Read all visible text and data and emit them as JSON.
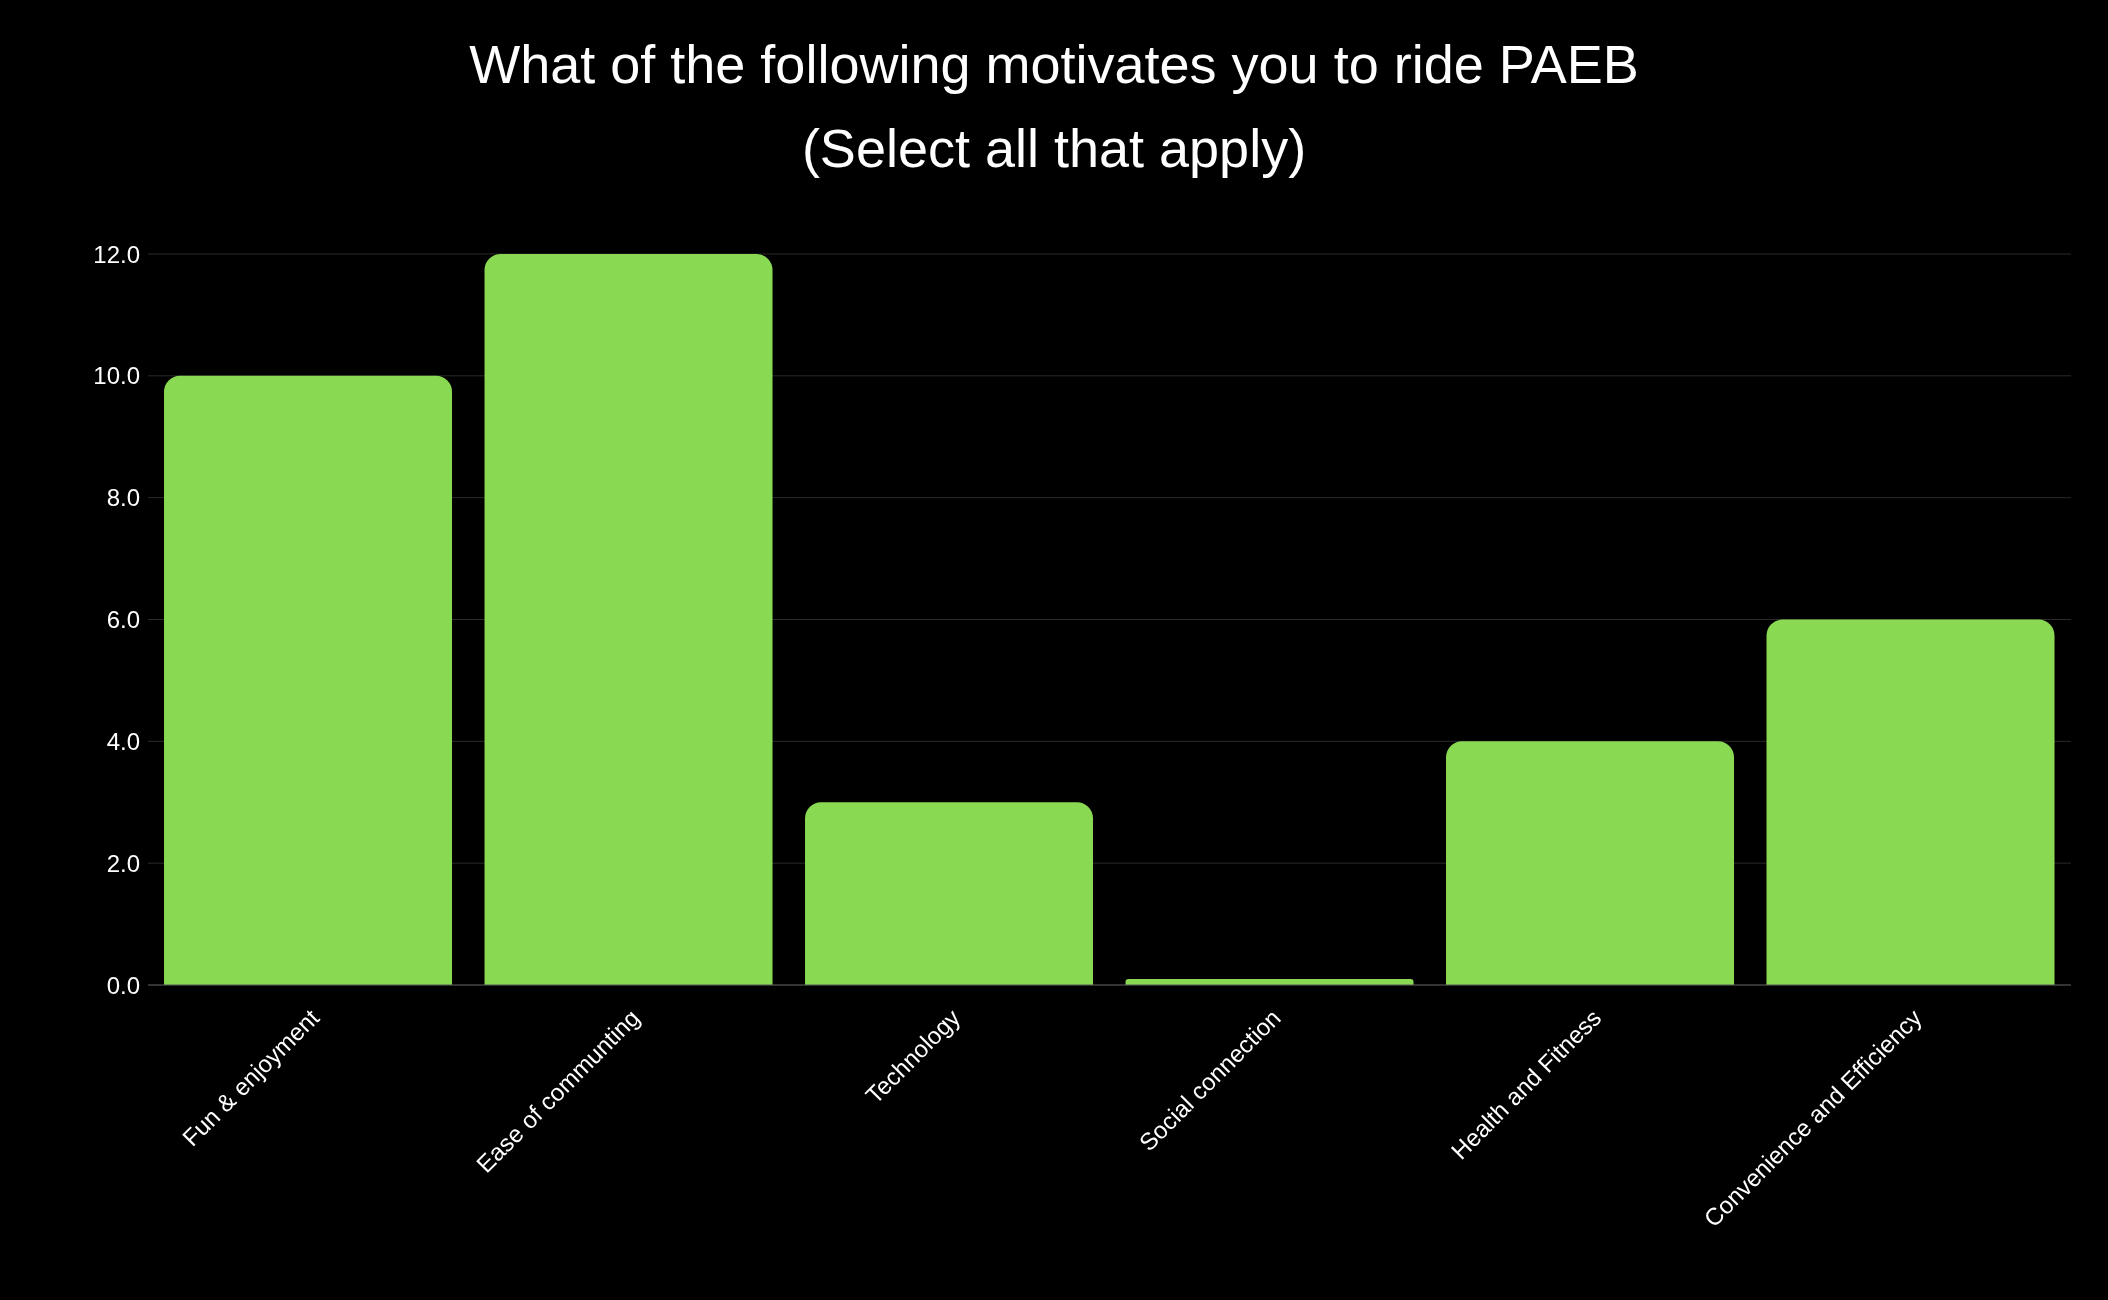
{
  "chart_data": {
    "type": "bar",
    "title": "What of the following motivates you to ride PAEB",
    "subtitle": "(Select all that apply)",
    "categories": [
      "Fun & enjoyment",
      "Ease of communting",
      "Technology",
      "Social connection",
      "Health and Fitness",
      "Convenience and Efficiency"
    ],
    "values": [
      10,
      12,
      3,
      0.1,
      4,
      6
    ],
    "color": "#8ad952",
    "ylim": [
      0,
      12
    ],
    "yticks": [
      {
        "value": 0,
        "label": "0.0"
      },
      {
        "value": 2,
        "label": "2.0"
      },
      {
        "value": 4,
        "label": "4.0"
      },
      {
        "value": 6,
        "label": "6.0"
      },
      {
        "value": 8,
        "label": "8.0"
      },
      {
        "value": 10,
        "label": "10.0"
      },
      {
        "value": 12,
        "label": "12.0"
      }
    ],
    "grid": "y"
  }
}
